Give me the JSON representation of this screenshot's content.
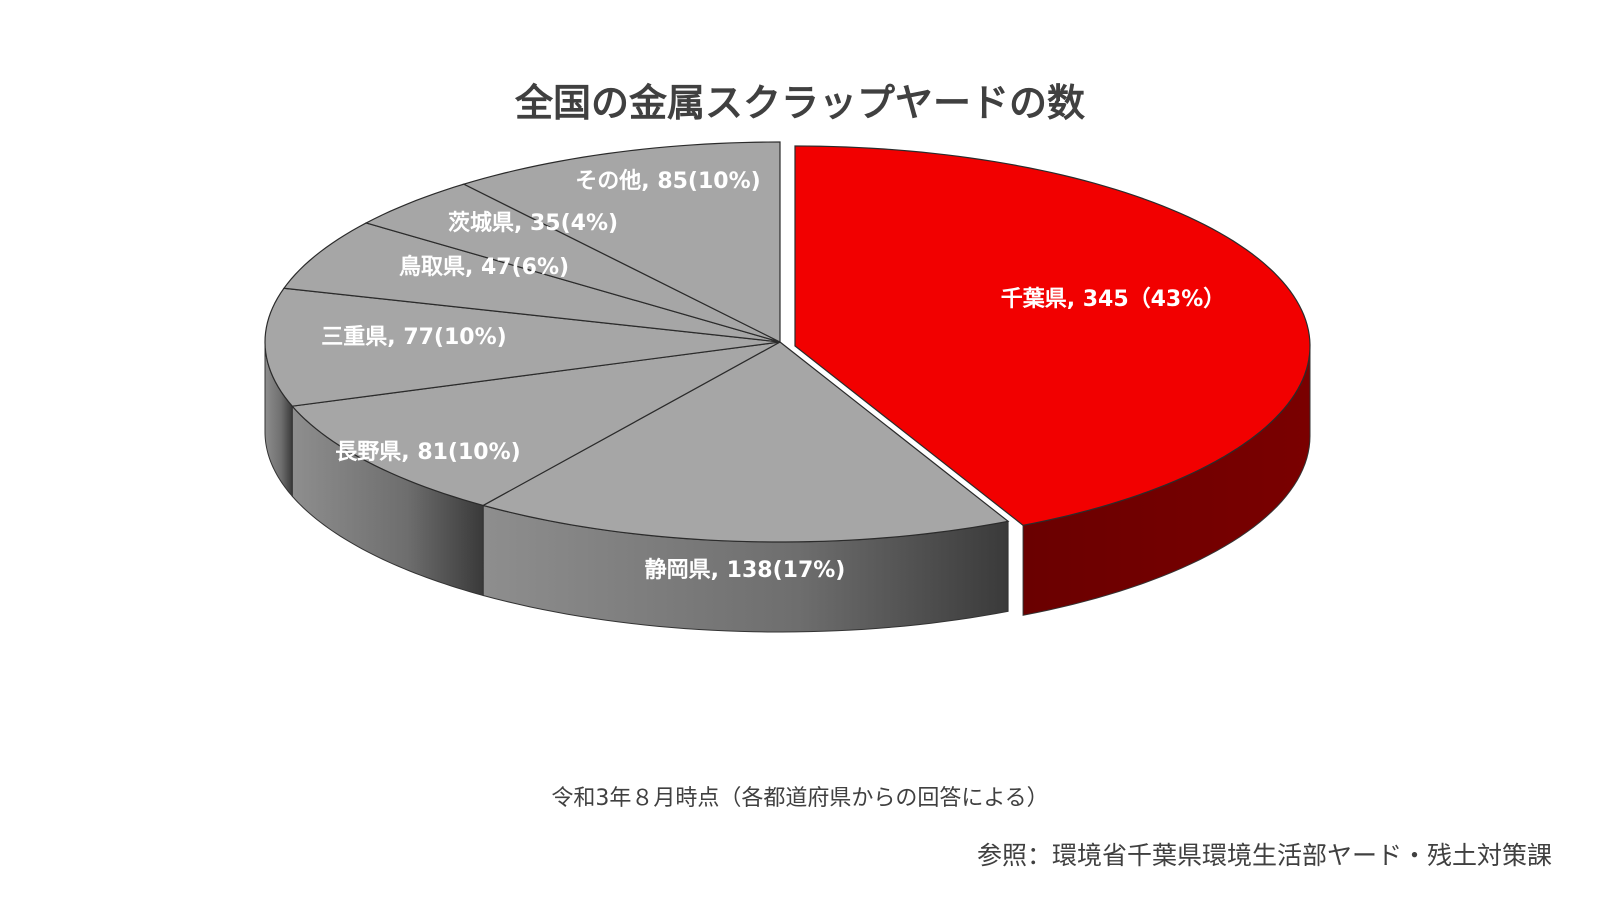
{
  "chart_data": {
    "type": "pie",
    "title": "全国の金属スクラップヤードの数",
    "slices": [
      {
        "name": "千葉県",
        "value": 345,
        "label": "千葉県, 345（43%）",
        "color": "#f20000",
        "side_color": "#6b0000"
      },
      {
        "name": "静岡県",
        "value": 138,
        "label": "静岡県, 138(17%)",
        "color": "#a6a6a6",
        "side_color": "#555555"
      },
      {
        "name": "長野県",
        "value": 81,
        "label": "長野県, 81(10%)",
        "color": "#a6a6a6",
        "side_color": "#7a7a7a"
      },
      {
        "name": "三重県",
        "value": 77,
        "label": "三重県, 77(10%)",
        "color": "#a6a6a6",
        "side_color": "#8a8a8a"
      },
      {
        "name": "鳥取県",
        "value": 47,
        "label": "鳥取県, 47(6%)",
        "color": "#a6a6a6",
        "side_color": "#8a8a8a"
      },
      {
        "name": "茨城県",
        "value": 35,
        "label": "茨城県, 35(4%)",
        "color": "#a6a6a6",
        "side_color": "#8a8a8a"
      },
      {
        "name": "その他",
        "value": 85,
        "label": "その他, 85(10%)",
        "color": "#a6a6a6",
        "side_color": "#8a8a8a"
      }
    ],
    "exploded_slice": "千葉県",
    "legend": "none"
  },
  "note": "令和3年８月時点（各都道府県からの回答による）",
  "source": "参照：環境省千葉県環境生活部ヤード・残土対策課"
}
